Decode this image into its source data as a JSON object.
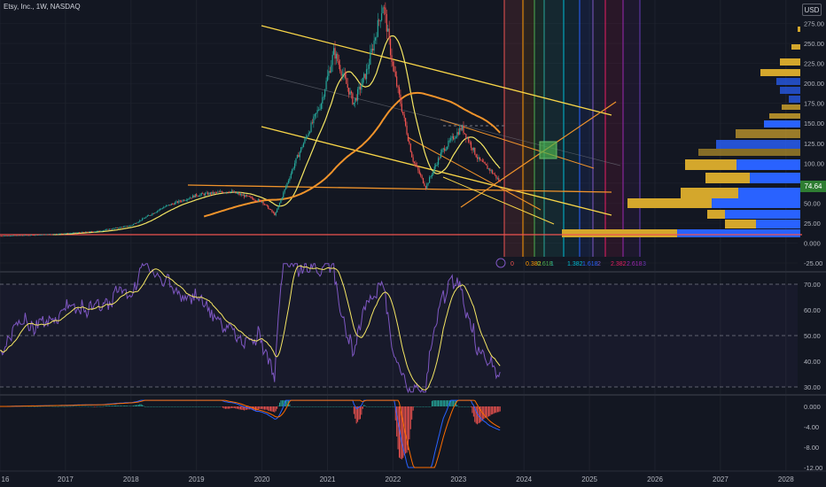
{
  "header": {
    "title": "Etsy, Inc., 1W, NASDAQ",
    "currency": "USD",
    "last_price": "74.64"
  },
  "colors": {
    "background": "#131722",
    "grid": "#1e222d",
    "up": "#26a69a",
    "down": "#ef5350",
    "ma_yellow": "#f5e663",
    "ma_orange": "#f0932b",
    "trend_yellow": "#f9d648",
    "rsi": "#7e57c2",
    "volume_profile_gold": "#d4a72c",
    "volume_profile_blue": "#2962ff"
  },
  "chart_data": [
    {
      "type": "line",
      "name": "price",
      "xlabel": "",
      "ylabel": "",
      "x": [
        "2016",
        "2017",
        "2018",
        "2019",
        "2020",
        "2021",
        "2022",
        "2023",
        "2024",
        "2025",
        "2026",
        "2027",
        "2028"
      ],
      "x_ticks": [
        "16",
        "2017",
        "2018",
        "2019",
        "2020",
        "2021",
        "2022",
        "2023",
        "2024",
        "2025",
        "2026",
        "2027",
        "2028"
      ],
      "y_ticks": [
        "275.00",
        "250.00",
        "225.00",
        "200.00",
        "175.00",
        "150.00",
        "125.00",
        "100.00",
        "75.00",
        "50.00",
        "25.00",
        "0.000",
        "-25.00"
      ],
      "ylim": [
        -25,
        290
      ],
      "approx_price_path": [
        {
          "x": 2016.0,
          "y": 9
        },
        {
          "x": 2016.5,
          "y": 10
        },
        {
          "x": 2017.0,
          "y": 12
        },
        {
          "x": 2017.5,
          "y": 15
        },
        {
          "x": 2018.0,
          "y": 22
        },
        {
          "x": 2018.5,
          "y": 45
        },
        {
          "x": 2019.0,
          "y": 60
        },
        {
          "x": 2019.5,
          "y": 65
        },
        {
          "x": 2020.0,
          "y": 52
        },
        {
          "x": 2020.2,
          "y": 35
        },
        {
          "x": 2020.5,
          "y": 100
        },
        {
          "x": 2020.9,
          "y": 175
        },
        {
          "x": 2021.1,
          "y": 240
        },
        {
          "x": 2021.4,
          "y": 175
        },
        {
          "x": 2021.6,
          "y": 215
        },
        {
          "x": 2021.85,
          "y": 300
        },
        {
          "x": 2022.0,
          "y": 220
        },
        {
          "x": 2022.3,
          "y": 105
        },
        {
          "x": 2022.5,
          "y": 70
        },
        {
          "x": 2022.75,
          "y": 115
        },
        {
          "x": 2023.05,
          "y": 145
        },
        {
          "x": 2023.3,
          "y": 105
        },
        {
          "x": 2023.5,
          "y": 90
        },
        {
          "x": 2023.65,
          "y": 75
        }
      ],
      "last_price": 74.64,
      "volume_profile_note": "horizontal volume profile on right side"
    },
    {
      "type": "line",
      "name": "oscillator",
      "y_ticks": [
        "70.00",
        "60.00",
        "50.00",
        "40.00",
        "30.00"
      ],
      "ylim": [
        27,
        76
      ],
      "levels": [
        70,
        50,
        30
      ]
    },
    {
      "type": "bar",
      "name": "histogram",
      "y_ticks": [
        "0.000",
        "-4.00",
        "-8.00",
        "-12.00"
      ],
      "ylim": [
        -12.5,
        1.5
      ]
    }
  ],
  "fib_time_labels": [
    "0",
    "0.382",
    "0.618",
    "1",
    "1.382",
    "1.618",
    "2",
    "2.382",
    "2.618",
    "3"
  ]
}
